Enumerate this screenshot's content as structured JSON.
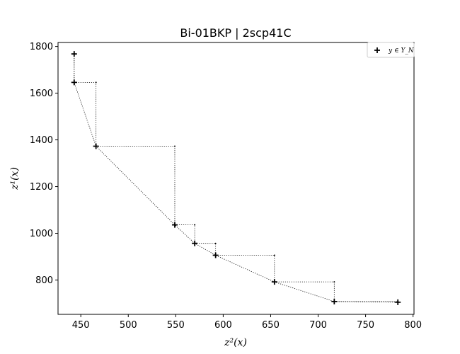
{
  "chart_data": {
    "type": "scatter",
    "title": "Bi-01BKP | 2scp41C",
    "xlabel": "z²(x)",
    "ylabel": "z¹(x)",
    "xlim": [
      426,
      801
    ],
    "ylim": [
      653,
      1817
    ],
    "xticks": [
      450,
      500,
      550,
      600,
      650,
      700,
      750,
      800
    ],
    "yticks": [
      800,
      1000,
      1200,
      1400,
      1600,
      1800
    ],
    "grid": false,
    "legend_position": "top-right",
    "series": [
      {
        "name": "y ∈ Y_N",
        "marker": "+",
        "color": "#000000",
        "x": [
          443,
          443,
          466,
          549,
          570,
          592,
          654,
          717,
          784
        ],
        "y": [
          1768,
          1646,
          1373,
          1036,
          957,
          906,
          792,
          708,
          705
        ]
      }
    ],
    "step_lines": true,
    "connecting_line": true
  }
}
